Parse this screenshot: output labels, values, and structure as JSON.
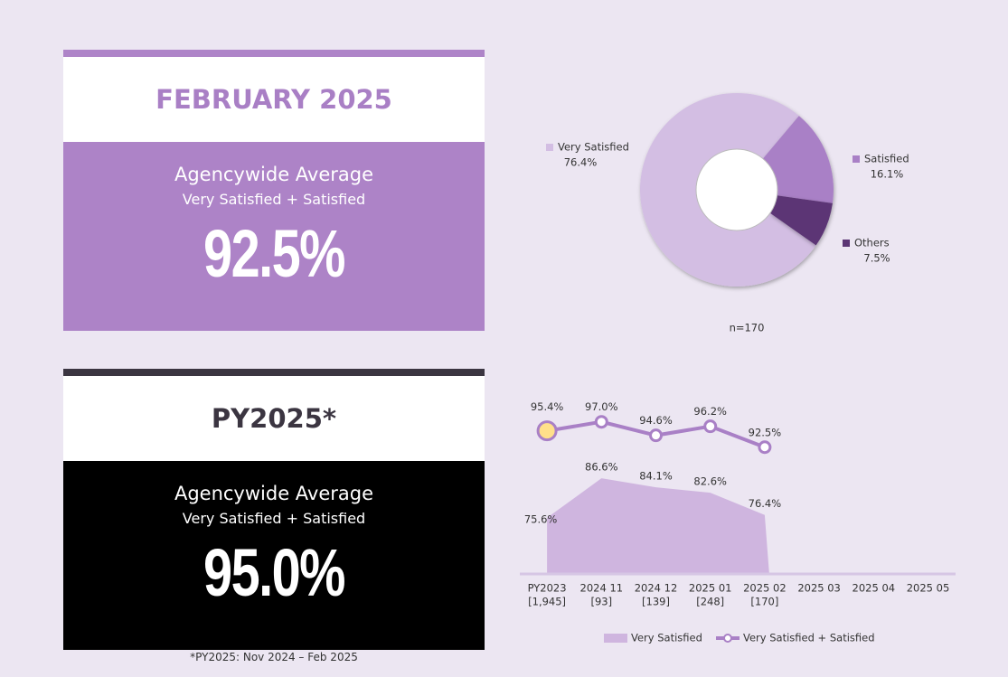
{
  "cards": [
    {
      "title": "FEBRUARY 2025",
      "subtitle": "Agencywide Average",
      "caption": "Very Satisfied + Satisfied",
      "value": "92.5%"
    },
    {
      "title": "PY2025*",
      "subtitle": "Agencywide Average",
      "caption": "Very Satisfied + Satisfied",
      "value": "95.0%",
      "footnote": "*PY2025: Nov 2024 – Feb 2025"
    }
  ],
  "chart_data": [
    {
      "type": "pie",
      "donut": true,
      "categories": [
        "Very Satisfied",
        "Satisfied",
        "Others"
      ],
      "values": [
        76.4,
        16.1,
        7.5
      ],
      "value_labels": [
        "76.4%",
        "16.1%",
        "7.5%"
      ],
      "colors": [
        "#d3bee3",
        "#a980c6",
        "#5b3574"
      ],
      "note": "n=170"
    },
    {
      "type": "line-area",
      "categories": [
        "PY2023",
        "2024 11",
        "2024 12",
        "2025 01",
        "2025 02",
        "2025 03",
        "2025 04",
        "2025 05"
      ],
      "category_counts": [
        "[1,945]",
        "[93]",
        "[139]",
        "[248]",
        "[170]",
        null,
        null,
        null
      ],
      "ylim": [
        60,
        107
      ],
      "y2lim": [
        70,
        100
      ],
      "legend": "bottom",
      "series": [
        {
          "name": "Very Satisfied",
          "type": "area",
          "color": "#cfb5df",
          "values": [
            75.6,
            86.6,
            84.1,
            82.6,
            76.4,
            null,
            null,
            null
          ],
          "value_labels": [
            "75.6%",
            "86.6%",
            "84.1%",
            "82.6%",
            "76.4%",
            null,
            null,
            null
          ]
        },
        {
          "name": "Very Satisfied + Satisfied",
          "type": "line",
          "axis": "y2",
          "color": "#a980c6",
          "highlight_color": "#ffe08a",
          "values": [
            95.4,
            97.0,
            94.6,
            96.2,
            92.5,
            null,
            null,
            null
          ],
          "value_labels": [
            "95.4%",
            "97.0%",
            "94.6%",
            "96.2%",
            "92.5%",
            null,
            null,
            null
          ]
        }
      ]
    }
  ]
}
